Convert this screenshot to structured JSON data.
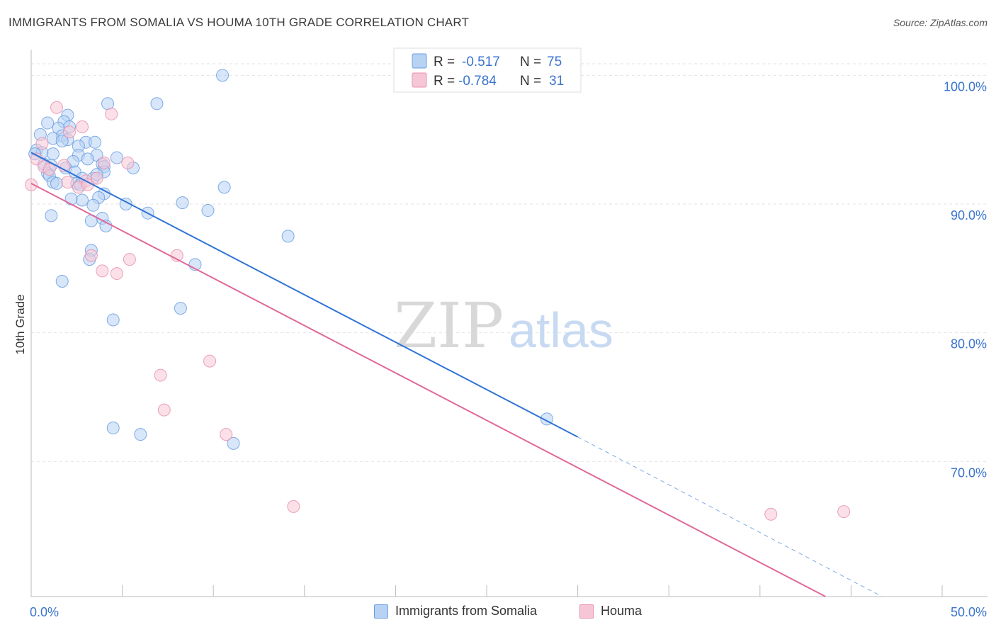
{
  "header": {
    "title": "IMMIGRANTS FROM SOMALIA VS HOUMA 10TH GRADE CORRELATION CHART",
    "source": "Source: ZipAtlas.com"
  },
  "watermark": {
    "zip": "ZIP",
    "atlas": "atlas"
  },
  "legend_top": [
    {
      "r_label": "R =",
      "r_value": "-0.517",
      "n_label": "N =",
      "n_value": "75"
    },
    {
      "r_label": "R =",
      "r_value": "-0.784",
      "n_label": "N =",
      "n_value": "31"
    }
  ],
  "chart_data": {
    "type": "scatter",
    "title": "IMMIGRANTS FROM SOMALIA VS HOUMA 10TH GRADE CORRELATION CHART",
    "xlabel": "",
    "ylabel": "10th Grade",
    "xlim": [
      0,
      50
    ],
    "ylim": [
      59.5,
      102
    ],
    "x_tick_labels": [
      "0.0%",
      "50.0%"
    ],
    "y_ticks": [
      70,
      80,
      90,
      100
    ],
    "y_tick_labels": [
      "70.0%",
      "80.0%",
      "90.0%",
      "100.0%"
    ],
    "grid": true,
    "legend_position": "bottom",
    "series": [
      {
        "name": "Immigrants from Somalia",
        "color": "#6a9fe0",
        "fill": "#b8d2f4",
        "trend": {
          "x": [
            0.0,
            30.0
          ],
          "y": [
            94.0,
            71.9
          ]
        },
        "trend_dashed": {
          "x": [
            30.0,
            46.7
          ],
          "y": [
            71.9,
            59.5
          ]
        },
        "points": [
          [
            10.5,
            100.0
          ],
          [
            4.2,
            97.8
          ],
          [
            6.9,
            97.8
          ],
          [
            2.0,
            96.9
          ],
          [
            1.8,
            96.4
          ],
          [
            0.9,
            96.3
          ],
          [
            2.1,
            96.0
          ],
          [
            1.5,
            95.9
          ],
          [
            0.5,
            95.4
          ],
          [
            1.7,
            95.3
          ],
          [
            1.2,
            95.1
          ],
          [
            2.0,
            95.0
          ],
          [
            1.7,
            94.9
          ],
          [
            3.0,
            94.8
          ],
          [
            3.5,
            94.8
          ],
          [
            2.6,
            94.5
          ],
          [
            0.3,
            94.2
          ],
          [
            0.6,
            94.0
          ],
          [
            0.2,
            93.9
          ],
          [
            1.2,
            93.9
          ],
          [
            2.6,
            93.8
          ],
          [
            3.6,
            93.8
          ],
          [
            4.7,
            93.6
          ],
          [
            3.1,
            93.5
          ],
          [
            2.3,
            93.3
          ],
          [
            0.7,
            93.1
          ],
          [
            1.1,
            93.0
          ],
          [
            3.9,
            93.1
          ],
          [
            4.0,
            92.9
          ],
          [
            1.9,
            92.8
          ],
          [
            5.6,
            92.8
          ],
          [
            2.4,
            92.5
          ],
          [
            4.0,
            92.5
          ],
          [
            0.9,
            92.4
          ],
          [
            1.0,
            92.2
          ],
          [
            2.8,
            92.0
          ],
          [
            3.4,
            92.0
          ],
          [
            3.6,
            92.3
          ],
          [
            1.2,
            91.7
          ],
          [
            1.4,
            91.6
          ],
          [
            2.5,
            91.6
          ],
          [
            2.7,
            91.5
          ],
          [
            10.6,
            91.3
          ],
          [
            4.0,
            90.8
          ],
          [
            3.7,
            90.5
          ],
          [
            2.2,
            90.4
          ],
          [
            2.8,
            90.3
          ],
          [
            8.3,
            90.1
          ],
          [
            5.2,
            90.0
          ],
          [
            3.4,
            89.9
          ],
          [
            9.7,
            89.5
          ],
          [
            6.4,
            89.3
          ],
          [
            1.1,
            89.1
          ],
          [
            3.9,
            88.9
          ],
          [
            3.3,
            88.7
          ],
          [
            4.1,
            88.3
          ],
          [
            14.1,
            87.5
          ],
          [
            3.3,
            86.4
          ],
          [
            3.2,
            85.7
          ],
          [
            9.0,
            85.3
          ],
          [
            1.7,
            84.0
          ],
          [
            8.2,
            81.9
          ],
          [
            4.5,
            81.0
          ],
          [
            28.3,
            73.3
          ],
          [
            4.5,
            72.6
          ],
          [
            6.0,
            72.1
          ],
          [
            11.1,
            71.4
          ]
        ]
      },
      {
        "name": "Houma",
        "color": "#e891ae",
        "fill": "#f7c6d6",
        "trend": {
          "x": [
            0.0,
            43.6
          ],
          "y": [
            91.6,
            59.5
          ]
        },
        "points": [
          [
            1.4,
            97.5
          ],
          [
            4.4,
            97.0
          ],
          [
            2.8,
            96.0
          ],
          [
            2.1,
            95.6
          ],
          [
            0.6,
            94.7
          ],
          [
            0.3,
            93.5
          ],
          [
            1.8,
            93.0
          ],
          [
            0.7,
            92.9
          ],
          [
            5.3,
            93.2
          ],
          [
            4.0,
            93.2
          ],
          [
            1.0,
            92.7
          ],
          [
            3.6,
            92.0
          ],
          [
            3.0,
            91.8
          ],
          [
            2.0,
            91.7
          ],
          [
            2.6,
            91.3
          ],
          [
            0.0,
            91.5
          ],
          [
            3.1,
            91.5
          ],
          [
            3.3,
            86.0
          ],
          [
            8.0,
            86.0
          ],
          [
            5.4,
            85.7
          ],
          [
            3.9,
            84.8
          ],
          [
            4.7,
            84.6
          ],
          [
            9.8,
            77.8
          ],
          [
            7.1,
            76.7
          ],
          [
            7.3,
            74.0
          ],
          [
            10.7,
            72.1
          ],
          [
            14.4,
            66.5
          ],
          [
            40.6,
            65.9
          ],
          [
            44.6,
            66.1
          ]
        ]
      }
    ]
  },
  "legend_bottom": [
    {
      "label": "Immigrants from Somalia"
    },
    {
      "label": "Houma"
    }
  ]
}
